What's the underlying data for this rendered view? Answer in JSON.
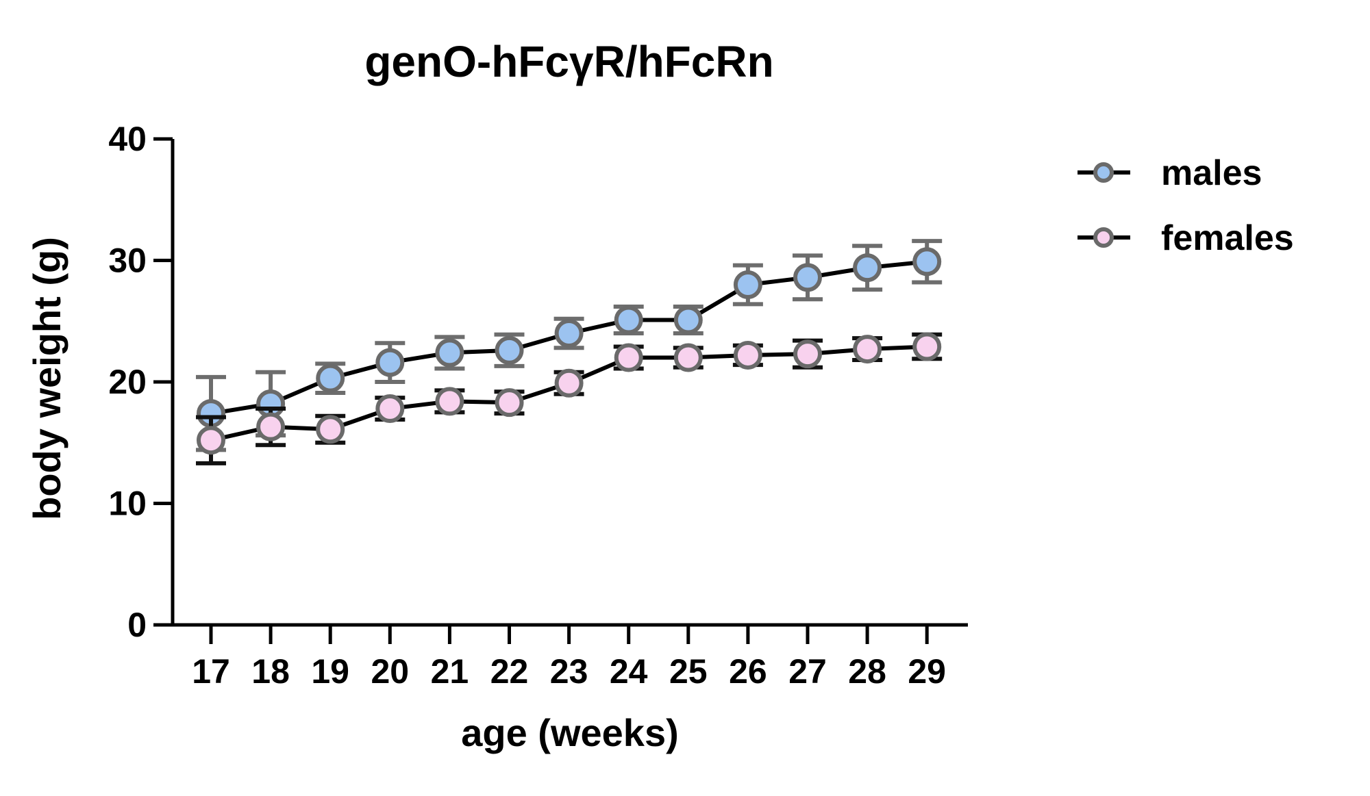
{
  "page": {
    "background": "#ffffff"
  },
  "chart_data": {
    "type": "line",
    "title": "genO-hFcγR/hFcRn",
    "xlabel": "age (weeks)",
    "ylabel": "body weight (g)",
    "x": [
      17,
      18,
      19,
      20,
      21,
      22,
      23,
      24,
      25,
      26,
      27,
      28,
      29
    ],
    "xticks": [
      17,
      18,
      19,
      20,
      21,
      22,
      23,
      24,
      25,
      26,
      27,
      28,
      29
    ],
    "yticks": [
      0,
      10,
      20,
      30,
      40
    ],
    "ylim": [
      0,
      40
    ],
    "xlim": [
      16.4,
      29.7
    ],
    "grid": false,
    "legend_position": "right",
    "axis_color": "#000000",
    "marker_stroke": "#6A6A6A",
    "series": [
      {
        "name": "males",
        "color": "#9CC3F0",
        "line_color": "#000000",
        "error_color": "#6D6D6D",
        "values": [
          17.4,
          18.2,
          20.3,
          21.6,
          22.4,
          22.6,
          24.0,
          25.1,
          25.1,
          28.0,
          28.6,
          29.4,
          29.9
        ],
        "errors": [
          3.0,
          2.6,
          1.2,
          1.6,
          1.3,
          1.3,
          1.2,
          1.1,
          1.1,
          1.6,
          1.8,
          1.8,
          1.7
        ]
      },
      {
        "name": "females",
        "color": "#F8D2EE",
        "line_color": "#000000",
        "error_color": "#111111",
        "values": [
          15.2,
          16.3,
          16.1,
          17.8,
          18.4,
          18.3,
          19.9,
          22.0,
          22.0,
          22.2,
          22.3,
          22.7,
          22.9
        ],
        "errors": [
          1.9,
          1.5,
          1.1,
          0.9,
          0.9,
          0.9,
          0.9,
          0.9,
          0.8,
          0.8,
          1.1,
          0.9,
          1.0
        ]
      }
    ]
  }
}
